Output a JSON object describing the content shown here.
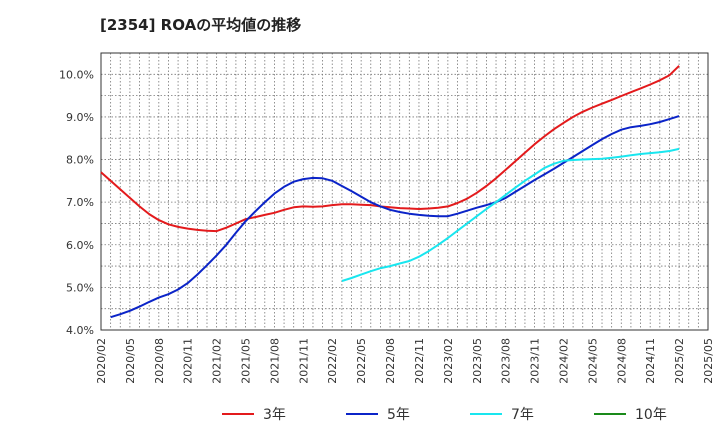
{
  "title": "[2354]  ROAの平均値の推移",
  "chart_data": {
    "type": "line",
    "title": "[2354]  ROAの平均値の推移",
    "xlabel": "",
    "ylabel": "",
    "ylim": [
      4.0,
      10.5
    ],
    "yticks": [
      4.0,
      5.0,
      6.0,
      7.0,
      8.0,
      9.0,
      10.0
    ],
    "ytick_labels": [
      "4.0%",
      "5.0%",
      "6.0%",
      "7.0%",
      "8.0%",
      "9.0%",
      "10.0%"
    ],
    "xticks": [
      "2020/02",
      "2020/05",
      "2020/08",
      "2020/11",
      "2021/02",
      "2021/05",
      "2021/08",
      "2021/11",
      "2022/02",
      "2022/05",
      "2022/08",
      "2022/11",
      "2023/02",
      "2023/05",
      "2023/08",
      "2023/11",
      "2024/02",
      "2024/05",
      "2024/08",
      "2024/11",
      "2025/02",
      "2025/05"
    ],
    "grid": true,
    "legend_position": "bottom",
    "series": [
      {
        "name": "3年",
        "color": "#e31a1c",
        "x": [
          "2020/02",
          "2020/03",
          "2020/04",
          "2020/05",
          "2020/06",
          "2020/07",
          "2020/08",
          "2020/09",
          "2020/10",
          "2020/11",
          "2020/12",
          "2021/01",
          "2021/02",
          "2021/03",
          "2021/04",
          "2021/05",
          "2021/06",
          "2021/07",
          "2021/08",
          "2021/09",
          "2021/10",
          "2021/11",
          "2021/12",
          "2022/01",
          "2022/02",
          "2022/03",
          "2022/04",
          "2022/05",
          "2022/06",
          "2022/07",
          "2022/08",
          "2022/09",
          "2022/10",
          "2022/11",
          "2022/12",
          "2023/01",
          "2023/02",
          "2023/03",
          "2023/04",
          "2023/05",
          "2023/06",
          "2023/07",
          "2023/08",
          "2023/09",
          "2023/10",
          "2023/11",
          "2023/12",
          "2024/01",
          "2024/02",
          "2024/03",
          "2024/04",
          "2024/05",
          "2024/06",
          "2024/07",
          "2024/08",
          "2024/09",
          "2024/10",
          "2024/11",
          "2024/12",
          "2025/01",
          "2025/02"
        ],
        "values": [
          7.7,
          7.5,
          7.3,
          7.1,
          6.9,
          6.72,
          6.58,
          6.48,
          6.42,
          6.38,
          6.35,
          6.33,
          6.32,
          6.4,
          6.5,
          6.6,
          6.65,
          6.7,
          6.75,
          6.82,
          6.88,
          6.9,
          6.89,
          6.9,
          6.93,
          6.95,
          6.95,
          6.94,
          6.93,
          6.9,
          6.88,
          6.86,
          6.85,
          6.84,
          6.85,
          6.87,
          6.9,
          6.98,
          7.08,
          7.22,
          7.38,
          7.56,
          7.76,
          7.96,
          8.16,
          8.36,
          8.54,
          8.71,
          8.86,
          9.0,
          9.12,
          9.22,
          9.31,
          9.4,
          9.49,
          9.58,
          9.67,
          9.76,
          9.86,
          9.98,
          10.2
        ]
      },
      {
        "name": "5年",
        "color": "#0b24c8",
        "x": [
          "2020/03",
          "2020/04",
          "2020/05",
          "2020/06",
          "2020/07",
          "2020/08",
          "2020/09",
          "2020/10",
          "2020/11",
          "2020/12",
          "2021/01",
          "2021/02",
          "2021/03",
          "2021/04",
          "2021/05",
          "2021/06",
          "2021/07",
          "2021/08",
          "2021/09",
          "2021/10",
          "2021/11",
          "2021/12",
          "2022/01",
          "2022/02",
          "2022/03",
          "2022/04",
          "2022/05",
          "2022/06",
          "2022/07",
          "2022/08",
          "2022/09",
          "2022/10",
          "2022/11",
          "2022/12",
          "2023/01",
          "2023/02",
          "2023/03",
          "2023/04",
          "2023/05",
          "2023/06",
          "2023/07",
          "2023/08",
          "2023/09",
          "2023/10",
          "2023/11",
          "2023/12",
          "2024/01",
          "2024/02",
          "2024/03",
          "2024/04",
          "2024/05",
          "2024/06",
          "2024/07",
          "2024/08",
          "2024/09",
          "2024/10",
          "2024/11",
          "2024/12",
          "2025/01",
          "2025/02"
        ],
        "values": [
          4.3,
          4.37,
          4.45,
          4.55,
          4.66,
          4.76,
          4.84,
          4.95,
          5.1,
          5.3,
          5.52,
          5.75,
          6.0,
          6.28,
          6.55,
          6.78,
          7.0,
          7.2,
          7.36,
          7.48,
          7.54,
          7.57,
          7.56,
          7.5,
          7.38,
          7.26,
          7.13,
          7.0,
          6.9,
          6.82,
          6.77,
          6.73,
          6.7,
          6.68,
          6.67,
          6.67,
          6.73,
          6.8,
          6.87,
          6.93,
          7.0,
          7.1,
          7.24,
          7.38,
          7.52,
          7.65,
          7.78,
          7.92,
          8.06,
          8.2,
          8.34,
          8.48,
          8.6,
          8.7,
          8.76,
          8.79,
          8.83,
          8.88,
          8.95,
          9.02
        ]
      },
      {
        "name": "7年",
        "color": "#19e6ef",
        "x": [
          "2022/03",
          "2022/04",
          "2022/05",
          "2022/06",
          "2022/07",
          "2022/08",
          "2022/09",
          "2022/10",
          "2022/11",
          "2022/12",
          "2023/01",
          "2023/02",
          "2023/03",
          "2023/04",
          "2023/05",
          "2023/06",
          "2023/07",
          "2023/08",
          "2023/09",
          "2023/10",
          "2023/11",
          "2023/12",
          "2024/01",
          "2024/02",
          "2024/03",
          "2024/04",
          "2024/05",
          "2024/06",
          "2024/07",
          "2024/08",
          "2024/09",
          "2024/10",
          "2024/11",
          "2024/12",
          "2025/01",
          "2025/02"
        ],
        "values": [
          5.15,
          5.22,
          5.3,
          5.38,
          5.45,
          5.5,
          5.56,
          5.62,
          5.72,
          5.85,
          6.0,
          6.16,
          6.33,
          6.5,
          6.67,
          6.84,
          7.0,
          7.17,
          7.34,
          7.5,
          7.65,
          7.8,
          7.9,
          7.97,
          7.99,
          8.0,
          8.01,
          8.02,
          8.04,
          8.07,
          8.1,
          8.13,
          8.15,
          8.17,
          8.2,
          8.25
        ]
      },
      {
        "name": "10年",
        "color": "#1a8a1a",
        "x": [],
        "values": []
      }
    ]
  }
}
